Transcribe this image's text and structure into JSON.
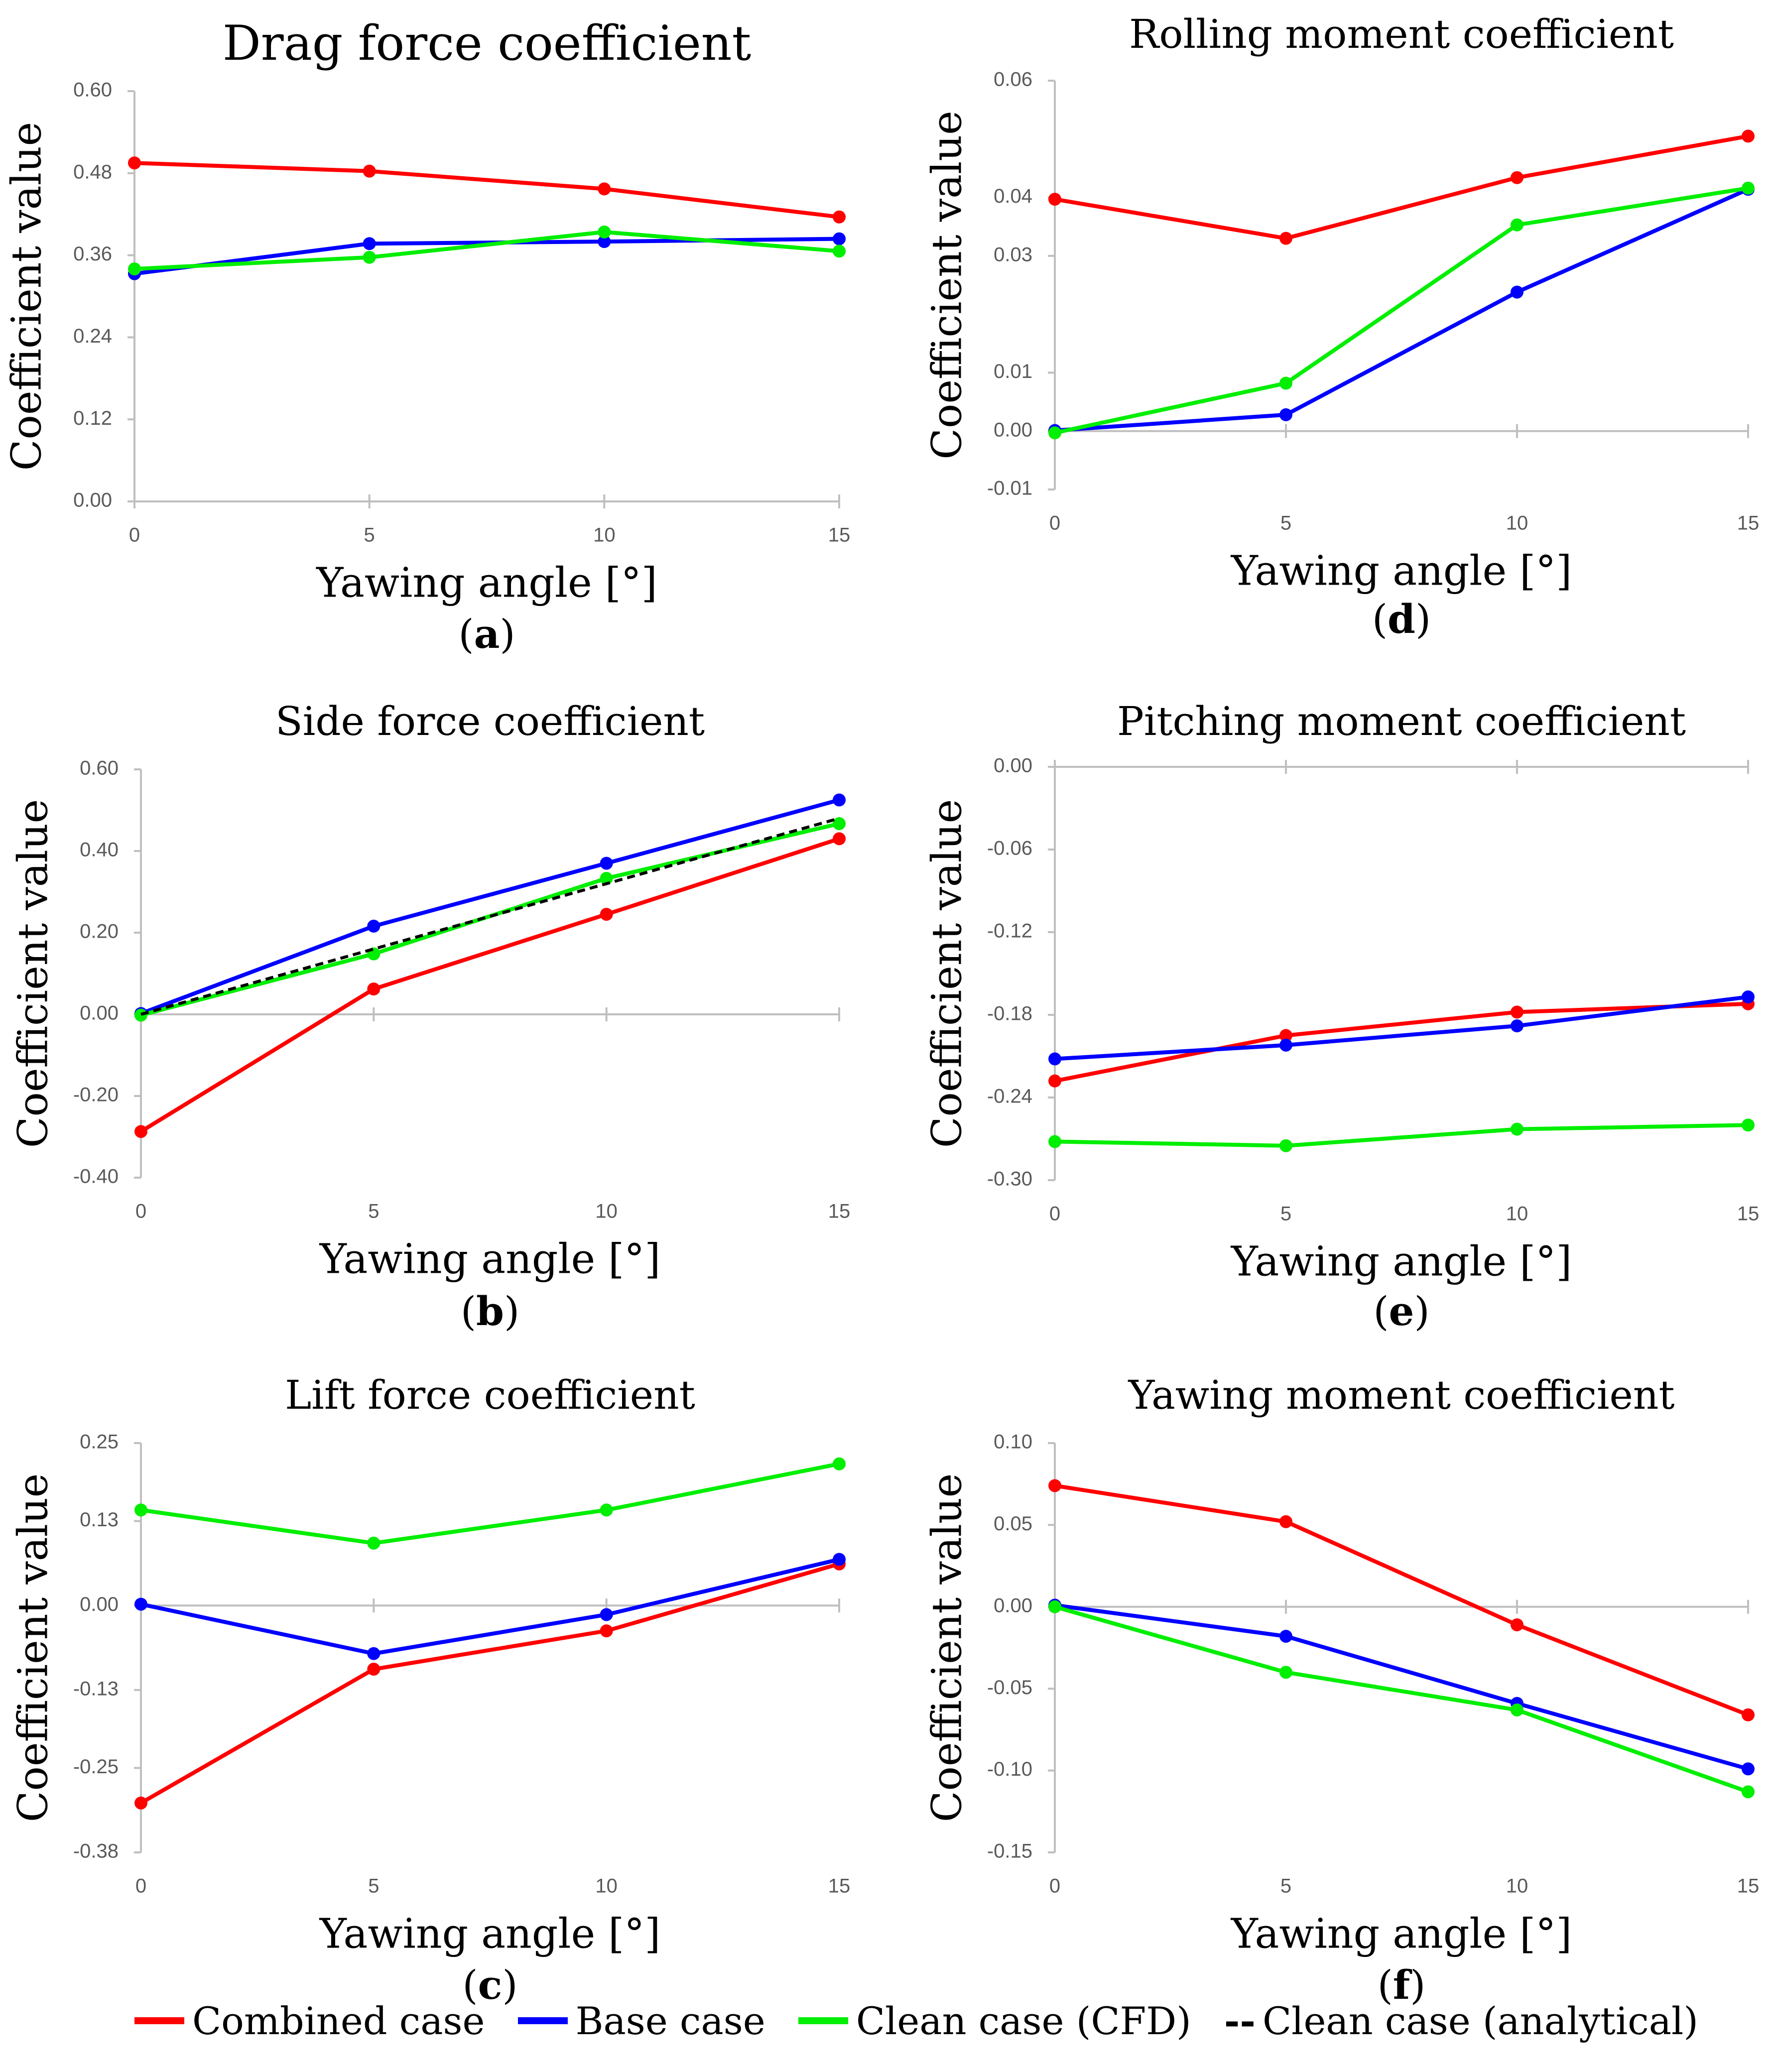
{
  "chart_data": [
    {
      "panel": "a",
      "type": "line",
      "title": "Drag force coefficient",
      "xlabel": "Yawing angle [°]",
      "ylabel": "Coefficient value",
      "x": [
        0,
        5,
        10,
        15
      ],
      "x_ticks": [
        "0",
        "5",
        "10",
        "15"
      ],
      "ylim": [
        0.0,
        0.6
      ],
      "y_ticks": [
        "0.00",
        "0.12",
        "0.24",
        "0.36",
        "0.48",
        "0.60"
      ],
      "series": [
        {
          "name": "Combined case",
          "color": "#ff0000",
          "values": [
            0.495,
            0.483,
            0.457,
            0.416
          ]
        },
        {
          "name": "Base case",
          "color": "#0000ff",
          "values": [
            0.333,
            0.377,
            0.38,
            0.384
          ]
        },
        {
          "name": "Clean case (CFD)",
          "color": "#00ee00",
          "values": [
            0.34,
            0.357,
            0.394,
            0.366
          ]
        }
      ]
    },
    {
      "panel": "b",
      "type": "line",
      "title": "Side force coefficient",
      "xlabel": "Yawing angle [°]",
      "ylabel": "Coefficient value",
      "x": [
        0,
        5,
        10,
        15
      ],
      "x_ticks": [
        "0",
        "5",
        "10",
        "15"
      ],
      "ylim": [
        -0.4,
        0.6
      ],
      "y_ticks": [
        "-0.40",
        "-0.20",
        "0.00",
        "0.20",
        "0.40",
        "0.60"
      ],
      "series": [
        {
          "name": "Combined case",
          "color": "#ff0000",
          "values": [
            -0.287,
            0.062,
            0.245,
            0.43
          ]
        },
        {
          "name": "Base case",
          "color": "#0000ff",
          "values": [
            0.002,
            0.216,
            0.37,
            0.525
          ]
        },
        {
          "name": "Clean case (CFD)",
          "color": "#00ee00",
          "values": [
            -0.002,
            0.148,
            0.333,
            0.467
          ]
        },
        {
          "name": "Clean case (analytical)",
          "color": "#000000",
          "dashed": true,
          "values": [
            0.0,
            0.16,
            0.32,
            0.48
          ]
        }
      ]
    },
    {
      "panel": "c",
      "type": "line",
      "title": "Lift force coefficient",
      "xlabel": "Yawing angle [°]",
      "ylabel": "Coefficient value",
      "x": [
        0,
        5,
        10,
        15
      ],
      "x_ticks": [
        "0",
        "5",
        "10",
        "15"
      ],
      "ylim": [
        -0.38,
        0.25
      ],
      "y_ticks": [
        "-0.38",
        "-0.25",
        "-0.13",
        "0.00",
        "0.13",
        "0.25"
      ],
      "series": [
        {
          "name": "Combined case",
          "color": "#ff0000",
          "values": [
            -0.304,
            -0.098,
            -0.039,
            0.064
          ]
        },
        {
          "name": "Base case",
          "color": "#0000ff",
          "values": [
            0.002,
            -0.074,
            -0.014,
            0.071
          ]
        },
        {
          "name": "Clean case (CFD)",
          "color": "#00ee00",
          "values": [
            0.147,
            0.096,
            0.147,
            0.218
          ]
        }
      ]
    },
    {
      "panel": "d",
      "type": "line",
      "title": "Rolling moment coefficient",
      "xlabel": "Yawing angle [°]",
      "ylabel": "Coefficient value",
      "x": [
        0,
        5,
        10,
        15
      ],
      "x_ticks": [
        "0",
        "5",
        "10",
        "15"
      ],
      "ylim": [
        -0.01,
        0.06
      ],
      "y_ticks": [
        "-0.01",
        "0.00",
        "0.01",
        "0.03",
        "0.04",
        "0.06"
      ],
      "series": [
        {
          "name": "Combined case",
          "color": "#ff0000",
          "values": [
            0.0397,
            0.033,
            0.0434,
            0.0505
          ]
        },
        {
          "name": "Base case",
          "color": "#0000ff",
          "values": [
            0.0001,
            0.0028,
            0.0238,
            0.0414
          ]
        },
        {
          "name": "Clean case (CFD)",
          "color": "#00ee00",
          "values": [
            -0.0003,
            0.0082,
            0.0353,
            0.0416
          ]
        }
      ]
    },
    {
      "panel": "e",
      "type": "line",
      "title": "Pitching moment coefficient",
      "xlabel": "Yawing angle [°]",
      "ylabel": "Coefficient value",
      "x": [
        0,
        5,
        10,
        15
      ],
      "x_ticks": [
        "0",
        "5",
        "10",
        "15"
      ],
      "ylim": [
        -0.3,
        0.0
      ],
      "y_ticks": [
        "-0.30",
        "-0.24",
        "-0.18",
        "-0.12",
        "-0.06",
        "0.00"
      ],
      "series": [
        {
          "name": "Combined case",
          "color": "#ff0000",
          "values": [
            -0.228,
            -0.195,
            -0.178,
            -0.172
          ]
        },
        {
          "name": "Base case",
          "color": "#0000ff",
          "values": [
            -0.212,
            -0.202,
            -0.188,
            -0.167
          ]
        },
        {
          "name": "Clean case (CFD)",
          "color": "#00ee00",
          "values": [
            -0.272,
            -0.275,
            -0.263,
            -0.26
          ]
        }
      ]
    },
    {
      "panel": "f",
      "type": "line",
      "title": "Yawing moment coefficient",
      "xlabel": "Yawing angle [°]",
      "ylabel": "Coefficient value",
      "x": [
        0,
        5,
        10,
        15
      ],
      "x_ticks": [
        "0",
        "5",
        "10",
        "15"
      ],
      "ylim": [
        -0.15,
        0.1
      ],
      "y_ticks": [
        "-0.15",
        "-0.10",
        "-0.05",
        "0.00",
        "0.05",
        "0.10"
      ],
      "series": [
        {
          "name": "Combined case",
          "color": "#ff0000",
          "values": [
            0.074,
            0.052,
            -0.011,
            -0.066
          ]
        },
        {
          "name": "Base case",
          "color": "#0000ff",
          "values": [
            0.001,
            -0.018,
            -0.059,
            -0.099
          ]
        },
        {
          "name": "Clean case (CFD)",
          "color": "#00ee00",
          "values": [
            0.0,
            -0.04,
            -0.063,
            -0.113
          ]
        }
      ]
    }
  ],
  "legend": {
    "items": [
      {
        "label": "Combined case",
        "color": "#ff0000",
        "dashed": false
      },
      {
        "label": "Base case",
        "color": "#0000ff",
        "dashed": false
      },
      {
        "label": "Clean case (CFD)",
        "color": "#00ee00",
        "dashed": false
      },
      {
        "label": "Clean case (analytical)",
        "color": "#000000",
        "dashed": true,
        "marker": "--"
      }
    ]
  }
}
